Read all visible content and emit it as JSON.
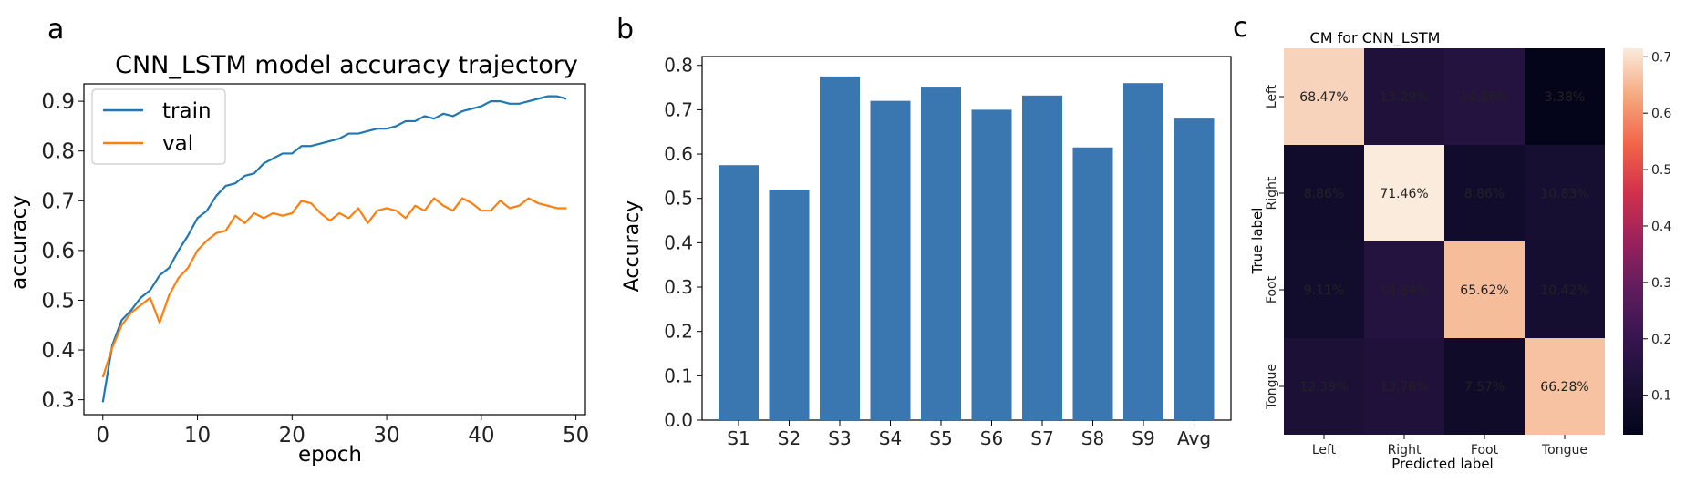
{
  "panel_letters": [
    "a",
    "b",
    "c"
  ],
  "chart_data": [
    {
      "type": "line",
      "title": "CNN_LSTM model accuracy trajectory",
      "xlabel": "epoch",
      "ylabel": "accuracy",
      "xlim": [
        -2,
        51
      ],
      "ylim": [
        0.27,
        0.935
      ],
      "xticks": [
        0,
        10,
        20,
        30,
        40,
        50
      ],
      "yticks": [
        0.3,
        0.4,
        0.5,
        0.6,
        0.7,
        0.8,
        0.9
      ],
      "legend_position": "top-left",
      "x": [
        0,
        1,
        2,
        3,
        4,
        5,
        6,
        7,
        8,
        9,
        10,
        11,
        12,
        13,
        14,
        15,
        16,
        17,
        18,
        19,
        20,
        21,
        22,
        23,
        24,
        25,
        26,
        27,
        28,
        29,
        30,
        31,
        32,
        33,
        34,
        35,
        36,
        37,
        38,
        39,
        40,
        41,
        42,
        43,
        44,
        45,
        46,
        47,
        48,
        49
      ],
      "series": [
        {
          "name": "train",
          "color": "#1f77b4",
          "values": [
            0.295,
            0.41,
            0.46,
            0.48,
            0.505,
            0.52,
            0.55,
            0.565,
            0.6,
            0.63,
            0.665,
            0.68,
            0.71,
            0.73,
            0.735,
            0.75,
            0.755,
            0.775,
            0.785,
            0.795,
            0.795,
            0.81,
            0.81,
            0.815,
            0.82,
            0.825,
            0.835,
            0.835,
            0.84,
            0.845,
            0.845,
            0.85,
            0.86,
            0.86,
            0.87,
            0.865,
            0.875,
            0.87,
            0.88,
            0.885,
            0.89,
            0.9,
            0.9,
            0.895,
            0.895,
            0.9,
            0.905,
            0.91,
            0.91,
            0.905
          ]
        },
        {
          "name": "val",
          "color": "#ff7f0e",
          "values": [
            0.345,
            0.405,
            0.45,
            0.475,
            0.49,
            0.505,
            0.455,
            0.51,
            0.545,
            0.565,
            0.6,
            0.62,
            0.635,
            0.64,
            0.67,
            0.655,
            0.675,
            0.665,
            0.675,
            0.67,
            0.675,
            0.7,
            0.695,
            0.675,
            0.66,
            0.675,
            0.665,
            0.685,
            0.655,
            0.68,
            0.685,
            0.68,
            0.665,
            0.69,
            0.68,
            0.705,
            0.69,
            0.68,
            0.705,
            0.695,
            0.68,
            0.68,
            0.7,
            0.685,
            0.69,
            0.705,
            0.695,
            0.69,
            0.685,
            0.685
          ]
        }
      ]
    },
    {
      "type": "bar",
      "ylabel": "Accuracy",
      "categories": [
        "S1",
        "S2",
        "S3",
        "S4",
        "S5",
        "S6",
        "S7",
        "S8",
        "S9",
        "Avg"
      ],
      "values": [
        0.575,
        0.52,
        0.775,
        0.72,
        0.75,
        0.7,
        0.732,
        0.615,
        0.76,
        0.68
      ],
      "ylim": [
        0,
        0.82
      ],
      "yticks": [
        0.0,
        0.1,
        0.2,
        0.3,
        0.4,
        0.5,
        0.6,
        0.7,
        0.8
      ],
      "color": "#3a76b0"
    },
    {
      "type": "heatmap",
      "title": "CM for CNN_LSTM",
      "xlabel": "Predicted label",
      "ylabel": "True label",
      "row_labels": [
        "Left",
        "Right",
        "Foot",
        "Tongue"
      ],
      "col_labels": [
        "Left",
        "Right",
        "Foot",
        "Tongue"
      ],
      "values": [
        [
          0.6847,
          0.1329,
          0.1486,
          0.0338
        ],
        [
          0.0886,
          0.7146,
          0.0886,
          0.1083
        ],
        [
          0.0911,
          0.1484,
          0.6562,
          0.1042
        ],
        [
          0.1239,
          0.1376,
          0.0757,
          0.6628
        ]
      ],
      "cell_text": [
        [
          "68.47%",
          "13.29%",
          "14.86%",
          "3.38%"
        ],
        [
          "8.86%",
          "71.46%",
          "8.86%",
          "10.83%"
        ],
        [
          "9.11%",
          "14.84%",
          "65.62%",
          "10.42%"
        ],
        [
          "12.39%",
          "13.76%",
          "7.57%",
          "66.28%"
        ]
      ],
      "colorbar": {
        "min": 0.03,
        "max": 0.715,
        "ticks": [
          0.1,
          0.2,
          0.3,
          0.4,
          0.5,
          0.6,
          0.7
        ]
      }
    }
  ]
}
